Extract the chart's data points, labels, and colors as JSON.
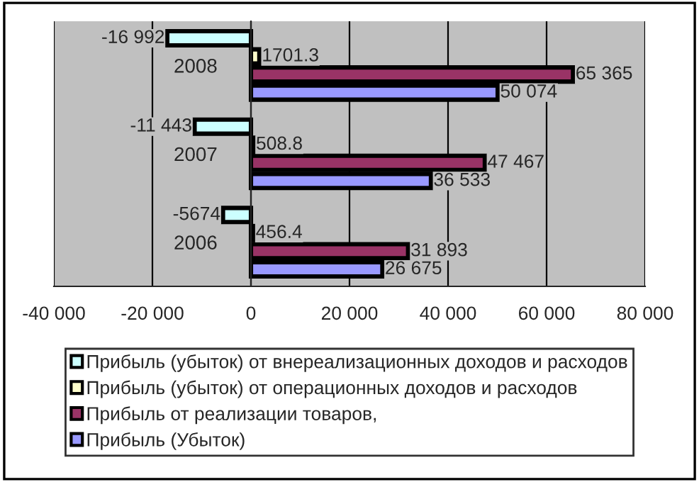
{
  "chart_data": {
    "type": "bar",
    "orientation": "horizontal",
    "categories": [
      "2008",
      "2007",
      "2006"
    ],
    "series": [
      {
        "name": "Прибыль (убыток) от внереализационных доходов и расходов",
        "color": "#ccffff",
        "values": [
          -16992,
          -11443,
          -5674
        ],
        "value_labels": [
          "-16 992",
          "-11 443",
          "-5674"
        ]
      },
      {
        "name": "Прибыль (убыток) от операционных доходов и расходов",
        "color": "#ffffcc",
        "values": [
          1701.3,
          508.8,
          456.4
        ],
        "value_labels": [
          "1701.3",
          "508.8",
          "456.4"
        ]
      },
      {
        "name": "Прибыль от реализации товаров,",
        "color": "#993366",
        "values": [
          65365,
          47467,
          31893
        ],
        "value_labels": [
          "65 365",
          "47 467",
          "31 893"
        ]
      },
      {
        "name": "Прибыль (Убыток)",
        "color": "#9999ff",
        "values": [
          50074,
          36533,
          26675
        ],
        "value_labels": [
          "50 074",
          "36 533",
          "26 675"
        ]
      }
    ],
    "xlim": [
      -40000,
      80000
    ],
    "xticks": [
      {
        "value": -40000,
        "label": "-40 000"
      },
      {
        "value": -20000,
        "label": "-20 000"
      },
      0,
      {
        "value": 20000,
        "label": "20 000"
      },
      {
        "value": 40000,
        "label": "40 000"
      },
      {
        "value": 60000,
        "label": "60 000"
      },
      {
        "value": 80000,
        "label": "80 000"
      }
    ],
    "grid": "x",
    "legend": "bottom"
  }
}
